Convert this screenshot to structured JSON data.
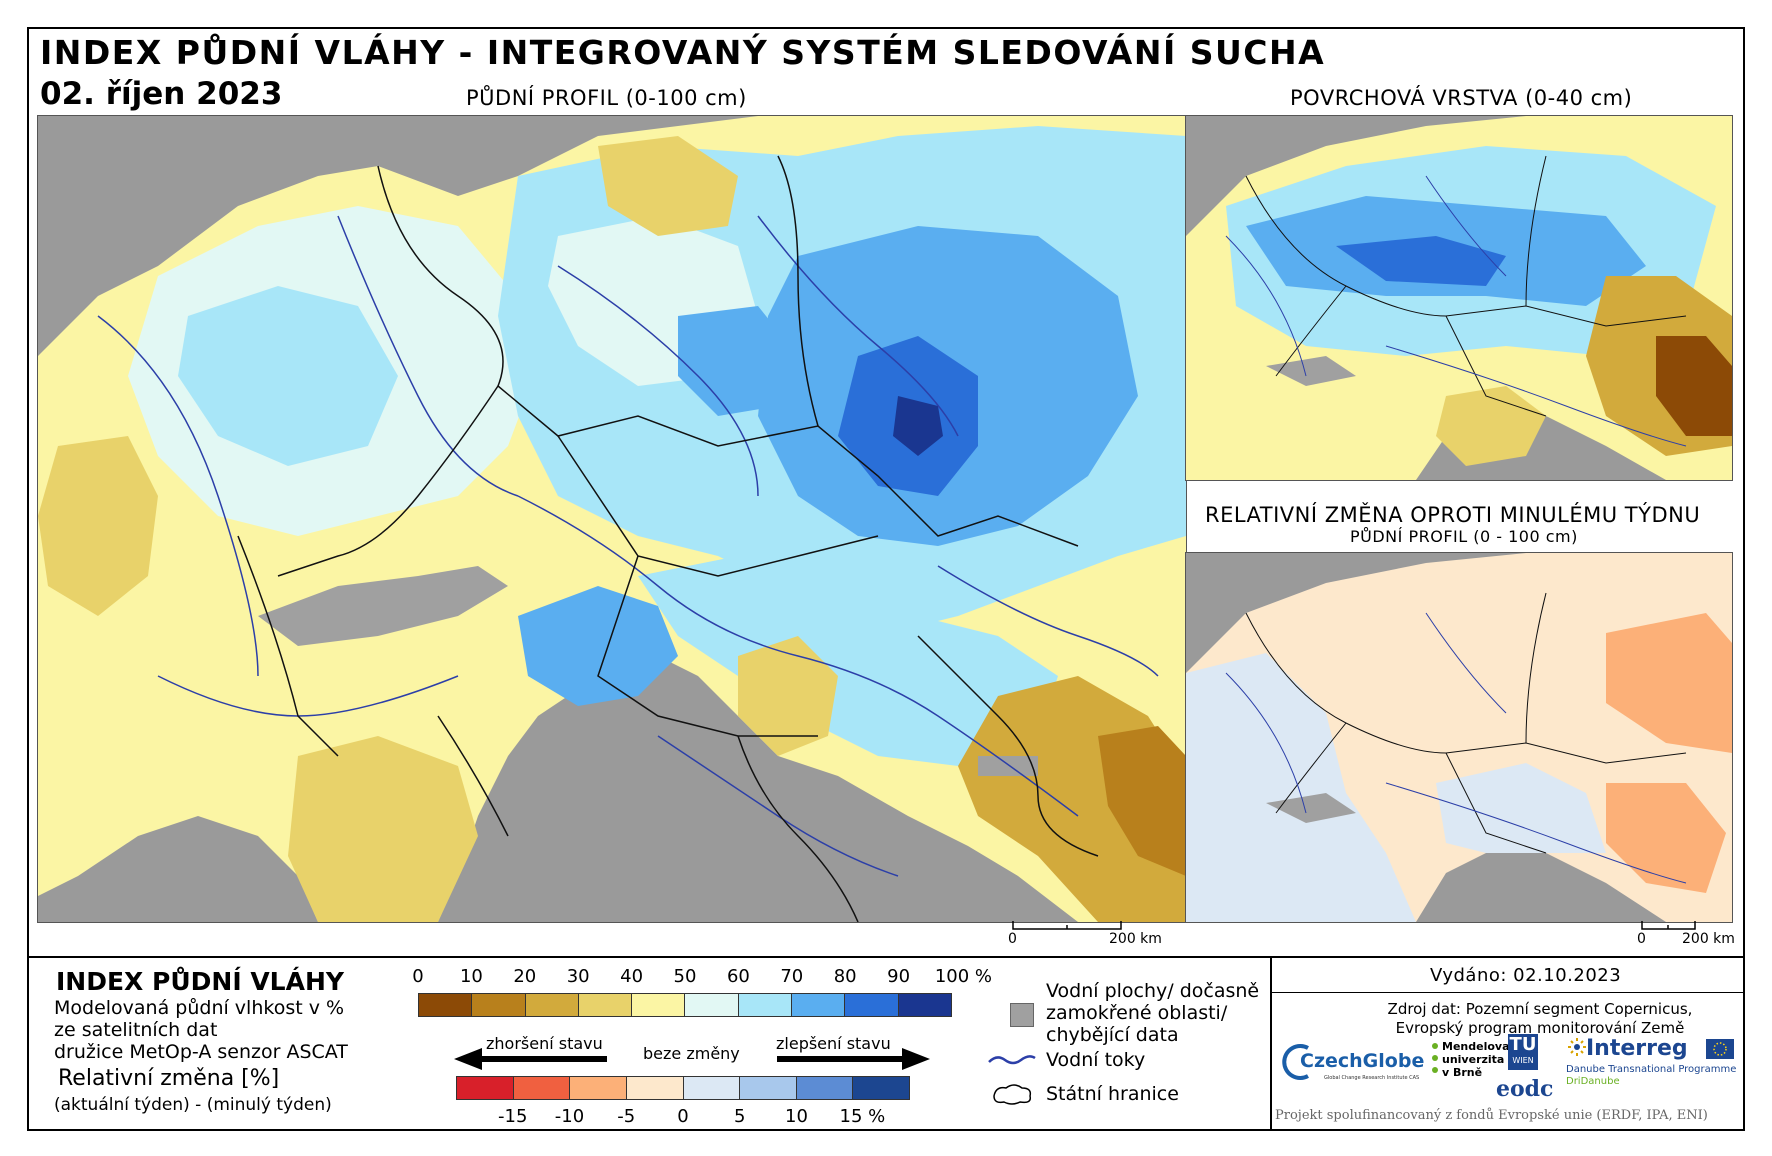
{
  "header": {
    "title": "INDEX PŮDNÍ VLÁHY - INTEGROVANÝ SYSTÉM SLEDOVÁNÍ SUCHA",
    "date": "02. říjen 2023"
  },
  "maps": {
    "main_title": "PŮDNÍ PROFIL (0-100 cm)",
    "surface_title": "POVRCHOVÁ VRSTVA (0-40 cm)",
    "change_title": "RELATIVNÍ ZMĚNA OPROTI MINULÉMU TÝDNU",
    "change_subtitle": "PŮDNÍ PROFIL (0 - 100 cm)",
    "scale_main": {
      "zero": "0",
      "end": "200 km"
    },
    "scale_small": {
      "zero": "0",
      "end": "200 km"
    }
  },
  "legend": {
    "title": "INDEX PŮDNÍ VLÁHY",
    "desc_lines": [
      "Modelovaná půdní vlhkost v %",
      "ze satelitních dat",
      "družice MetOp-A senzor ASCAT"
    ],
    "rel_title": "Relativní změna [%]",
    "rel_sub": "(aktuální týden) - (minulý týden)",
    "index_ticks": [
      "0",
      "10",
      "20",
      "30",
      "40",
      "50",
      "60",
      "70",
      "80",
      "90",
      "100 %"
    ],
    "index_colors": [
      "#8c4a06",
      "#b8801c",
      "#d2aa3c",
      "#e8d26a",
      "#fbf5a4",
      "#e2f8f4",
      "#a8e6f8",
      "#5aaef0",
      "#2a6fd8",
      "#1a3690"
    ],
    "change_colors": [
      "#d8202a",
      "#f06040",
      "#fcb078",
      "#fde8cc",
      "#dce8f4",
      "#a8c8ec",
      "#5c8cd4",
      "#1c4690"
    ],
    "change_ticks": [
      "-15",
      "-10",
      "-5",
      "0",
      "5",
      "10",
      "15 %"
    ],
    "arrow_worse": "zhoršení stavu",
    "arrow_none": "beze změny",
    "arrow_better": "zlepšení stavu",
    "water_label_lines": [
      "Vodní plochy/ dočasně",
      "zamokřené oblasti/",
      "chybějící data"
    ],
    "rivers_label": "Vodní toky",
    "borders_label": "Státní hranice",
    "colors": {
      "missing": "#a0a0a0",
      "river": "#2c3fa8"
    }
  },
  "credits": {
    "issued": "Vydáno: 02.10.2023",
    "source_lines": [
      "Zdroj dat: Pozemní segment Copernicus,",
      "Evropský program monitorování Země"
    ],
    "logos": {
      "czechglobe": "CzechGlobe",
      "czechglobe_sub": "Global Change Research Institute CAS",
      "mendel_lines": [
        "Mendelova",
        "univerzita",
        "v Brně"
      ],
      "tu": "TU",
      "tu_sub": "WIEN",
      "eodc": "eodc",
      "interreg": "Interreg",
      "interreg_sub": "Danube Transnational Programme",
      "interreg_sub2": "DriDanube"
    },
    "footer": "Projekt spolufinancovaný z fondů Evropské unie (ERDF, IPA, ENI)"
  }
}
